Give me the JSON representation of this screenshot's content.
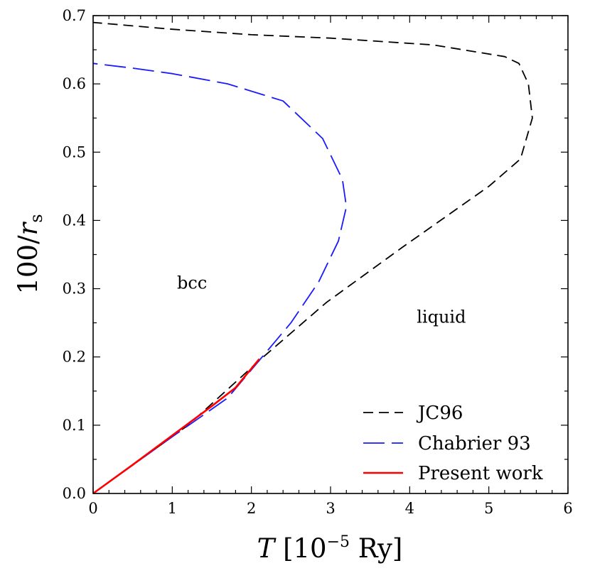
{
  "chart_data": {
    "type": "line",
    "xlabel": {
      "symbol": "T",
      "bracket_open": "[10",
      "exponent": "−5",
      "unit": " Ry]"
    },
    "ylabel": {
      "prefix": "100/",
      "symbol": "r",
      "subscript": "s"
    },
    "xlim": [
      0,
      6
    ],
    "ylim": [
      0,
      0.7
    ],
    "x_ticks": [
      0,
      1,
      2,
      3,
      4,
      5,
      6
    ],
    "x_tick_labels": [
      "0",
      "1",
      "2",
      "3",
      "4",
      "5",
      "6"
    ],
    "y_ticks": [
      0,
      0.1,
      0.2,
      0.3,
      0.4,
      0.5,
      0.6,
      0.7
    ],
    "y_tick_labels": [
      "0.0",
      "0.1",
      "0.2",
      "0.3",
      "0.4",
      "0.5",
      "0.6",
      "0.7"
    ],
    "annotations": [
      {
        "text": "bcc",
        "x": 1.25,
        "y": 0.3
      },
      {
        "text": "liquid",
        "x": 4.4,
        "y": 0.25
      }
    ],
    "legend_position": "lower-right",
    "series": [
      {
        "name": "JC96",
        "color": "#000000",
        "dash": "dashed",
        "points": [
          [
            0,
            0
          ],
          [
            1.2,
            0.1
          ],
          [
            2.15,
            0.2
          ],
          [
            2.95,
            0.28
          ],
          [
            3.9,
            0.36
          ],
          [
            5.0,
            0.45
          ],
          [
            5.4,
            0.49
          ],
          [
            5.55,
            0.55
          ],
          [
            5.5,
            0.6
          ],
          [
            5.38,
            0.63
          ],
          [
            5.2,
            0.64
          ],
          [
            4.3,
            0.657
          ],
          [
            3.0,
            0.667
          ],
          [
            2.0,
            0.672
          ],
          [
            1.0,
            0.68
          ],
          [
            0,
            0.69
          ]
        ]
      },
      {
        "name": "Chabrier 93",
        "color": "#1a1aff",
        "dash": "long-dashed",
        "points": [
          [
            0,
            0
          ],
          [
            1.0,
            0.083
          ],
          [
            1.7,
            0.14
          ],
          [
            2.1,
            0.195
          ],
          [
            2.5,
            0.25
          ],
          [
            2.85,
            0.31
          ],
          [
            3.1,
            0.37
          ],
          [
            3.2,
            0.42
          ],
          [
            3.15,
            0.46
          ],
          [
            2.9,
            0.52
          ],
          [
            2.4,
            0.575
          ],
          [
            1.7,
            0.6
          ],
          [
            1.0,
            0.615
          ],
          [
            0.5,
            0.623
          ],
          [
            0,
            0.63
          ]
        ]
      },
      {
        "name": "Present work",
        "color": "#ff0000",
        "dash": "solid",
        "points": [
          [
            0,
            0
          ],
          [
            0.5,
            0.042
          ],
          [
            1.0,
            0.085
          ],
          [
            1.5,
            0.128
          ],
          [
            1.8,
            0.155
          ],
          [
            2.1,
            0.197
          ]
        ]
      }
    ]
  }
}
